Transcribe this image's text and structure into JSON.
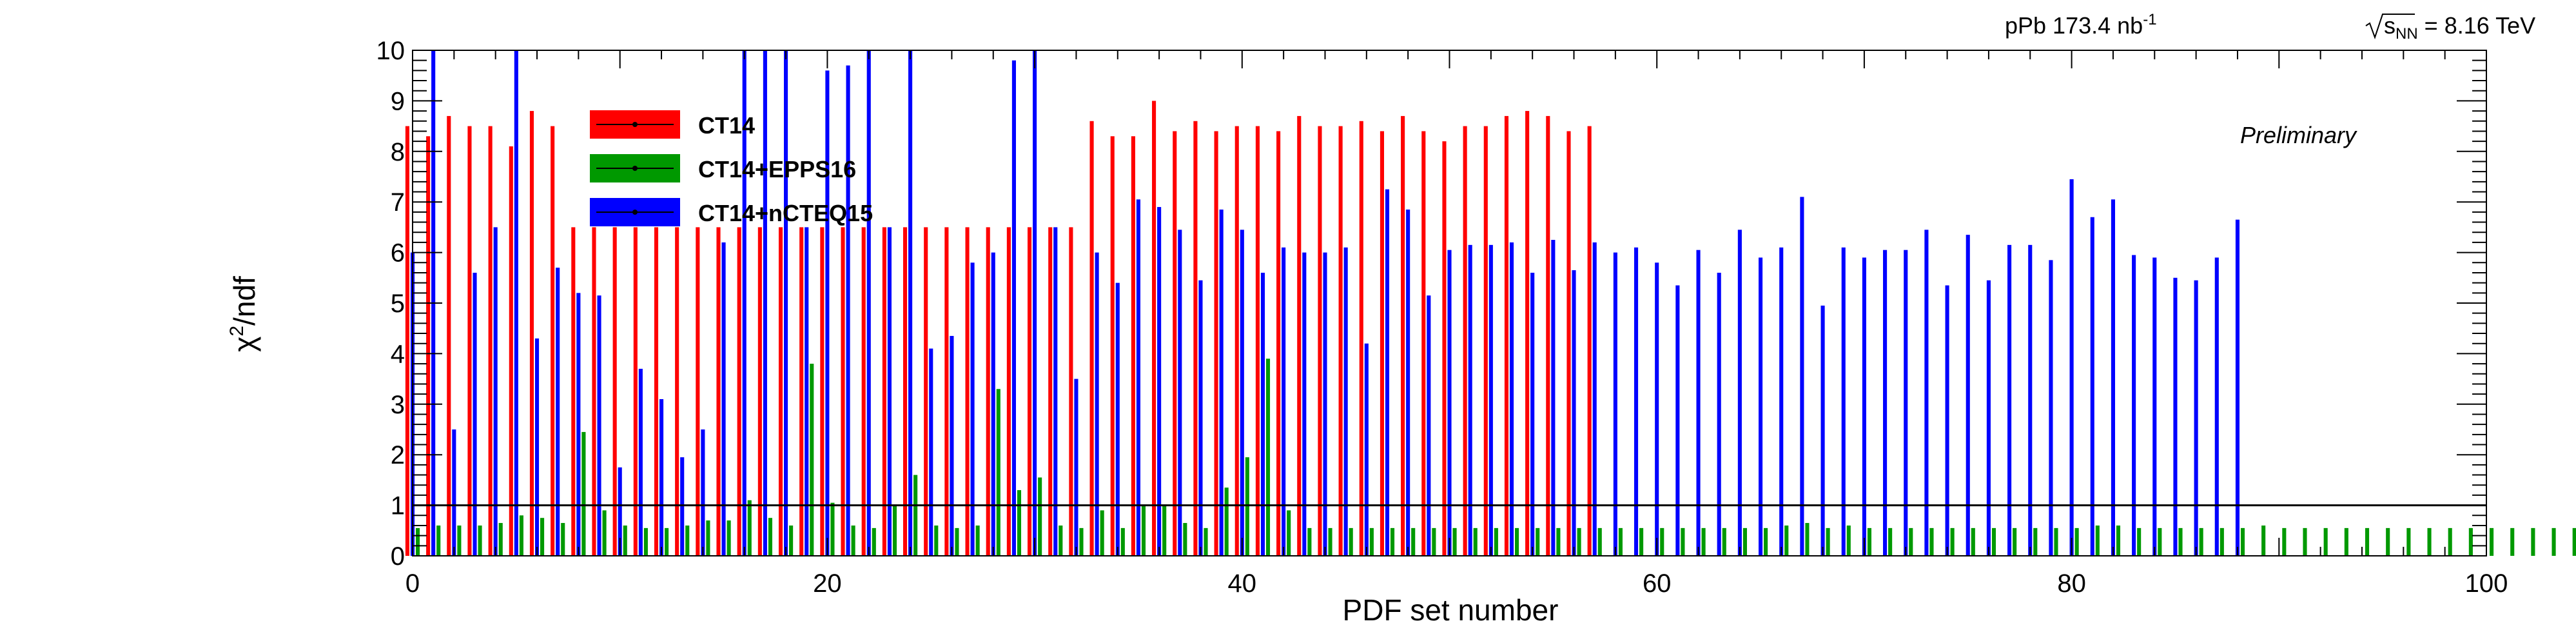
{
  "header": {
    "dataset": "pPb 173.4 nb",
    "dataset_sup": "-1",
    "energy_sqrt": "s",
    "energy_sub": "NN",
    "energy_value": " = 8.16 TeV",
    "preliminary": "Preliminary"
  },
  "axes": {
    "xlabel": "PDF set number",
    "ylabel_main": "χ",
    "ylabel_sup": "2",
    "ylabel_rest": "/ndf"
  },
  "legend": [
    {
      "label": "CT14",
      "color": "#ff0000"
    },
    {
      "label": "CT14+EPPS16",
      "color": "#009900"
    },
    {
      "label": "CT14+nCTEQ15",
      "color": "#0000ff"
    }
  ],
  "chart_data": {
    "type": "bar",
    "xlim": [
      0,
      100
    ],
    "ylim": [
      0,
      10
    ],
    "x_ticks": [
      0,
      20,
      40,
      60,
      80,
      100
    ],
    "y_ticks": [
      0,
      1,
      2,
      3,
      4,
      5,
      6,
      7,
      8,
      9,
      10
    ],
    "reference_line": 1,
    "grid": false,
    "legend_position": "top-left",
    "series": [
      {
        "name": "CT14",
        "color": "#ff0000",
        "x_start": 0,
        "values": [
          8.5,
          8.3,
          8.7,
          8.5,
          8.5,
          8.1,
          8.8,
          8.5,
          6.5,
          6.5,
          6.5,
          6.5,
          6.5,
          6.5,
          6.5,
          6.5,
          6.5,
          6.5,
          6.5,
          6.5,
          6.5,
          6.5,
          6.5,
          6.5,
          6.5,
          6.5,
          6.5,
          6.5,
          6.5,
          6.5,
          6.5,
          6.5,
          6.5,
          8.6,
          8.3,
          8.3,
          9.0,
          8.4,
          8.6,
          8.4,
          8.5,
          8.5,
          8.4,
          8.7,
          8.5,
          8.5,
          8.6,
          8.4,
          8.7,
          8.4,
          8.2,
          8.5,
          8.5,
          8.7,
          8.8,
          8.7,
          8.4,
          8.5
        ]
      },
      {
        "name": "CT14+nCTEQ15",
        "color": "#0000ff",
        "x_start": 0,
        "values": [
          6.0,
          10,
          2.5,
          5.6,
          6.5,
          10,
          4.3,
          5.7,
          5.2,
          5.15,
          1.75,
          3.7,
          3.1,
          1.95,
          2.5,
          6.2,
          10,
          10,
          10,
          6.5,
          9.6,
          9.7,
          10,
          6.5,
          10,
          4.1,
          4.35,
          5.8,
          6.0,
          9.8,
          10,
          6.5,
          3.5,
          6.0,
          5.4,
          7.05,
          6.9,
          6.45,
          5.45,
          6.85,
          6.45,
          5.6,
          6.1,
          6.0,
          6.0,
          6.1,
          4.2,
          7.25,
          6.85,
          5.15,
          6.05,
          6.15,
          6.15,
          6.2,
          5.6,
          6.25,
          5.65,
          6.2,
          6.0,
          6.1,
          5.8,
          5.35,
          6.05,
          5.6,
          6.45,
          5.9,
          6.1,
          7.1,
          4.95,
          6.1,
          5.9,
          6.05,
          6.05,
          6.45,
          5.35,
          6.35,
          5.45,
          6.15,
          6.15,
          5.85,
          7.45,
          6.7,
          7.05,
          5.95,
          5.9,
          5.5,
          5.45,
          5.9,
          6.65
        ]
      },
      {
        "name": "CT14+EPPS16",
        "color": "#009900",
        "x_start": 0,
        "values": [
          0.55,
          0.6,
          0.6,
          0.6,
          0.65,
          0.8,
          0.75,
          0.65,
          2.45,
          0.9,
          0.6,
          0.55,
          0.55,
          0.6,
          0.7,
          0.7,
          1.1,
          0.75,
          0.6,
          3.8,
          1.05,
          0.6,
          0.55,
          1.0,
          1.6,
          0.6,
          0.55,
          0.6,
          3.3,
          1.3,
          1.55,
          0.6,
          0.55,
          0.9,
          0.55,
          1.0,
          1.0,
          0.65,
          0.55,
          1.35,
          1.95,
          3.9,
          0.9,
          0.55,
          0.55,
          0.55,
          0.55,
          0.55,
          0.55,
          0.55,
          0.55,
          0.55,
          0.55,
          0.55,
          0.55,
          0.55,
          0.55,
          0.55,
          0.55,
          0.55,
          0.55,
          0.55,
          0.55,
          0.55,
          0.55,
          0.55,
          0.6,
          0.65,
          0.55,
          0.6,
          0.55,
          0.55,
          0.55,
          0.55,
          0.55,
          0.55,
          0.55,
          0.55,
          0.55,
          0.55,
          0.55,
          0.6,
          0.6,
          0.55,
          0.55,
          0.55,
          0.55,
          0.55,
          0.55,
          0.6,
          0.55,
          0.55,
          0.55,
          0.55,
          0.55,
          0.55,
          0.55,
          0.55,
          0.55,
          0.55,
          0.55,
          0.55,
          0.55,
          0.55,
          0.55,
          0.55,
          0.55,
          0.55,
          0.55,
          0.55,
          0.55,
          0.55,
          0.55,
          0.55,
          0.55,
          0.55,
          0.55,
          0.55,
          0.6,
          0.55,
          0.6
        ]
      }
    ]
  }
}
